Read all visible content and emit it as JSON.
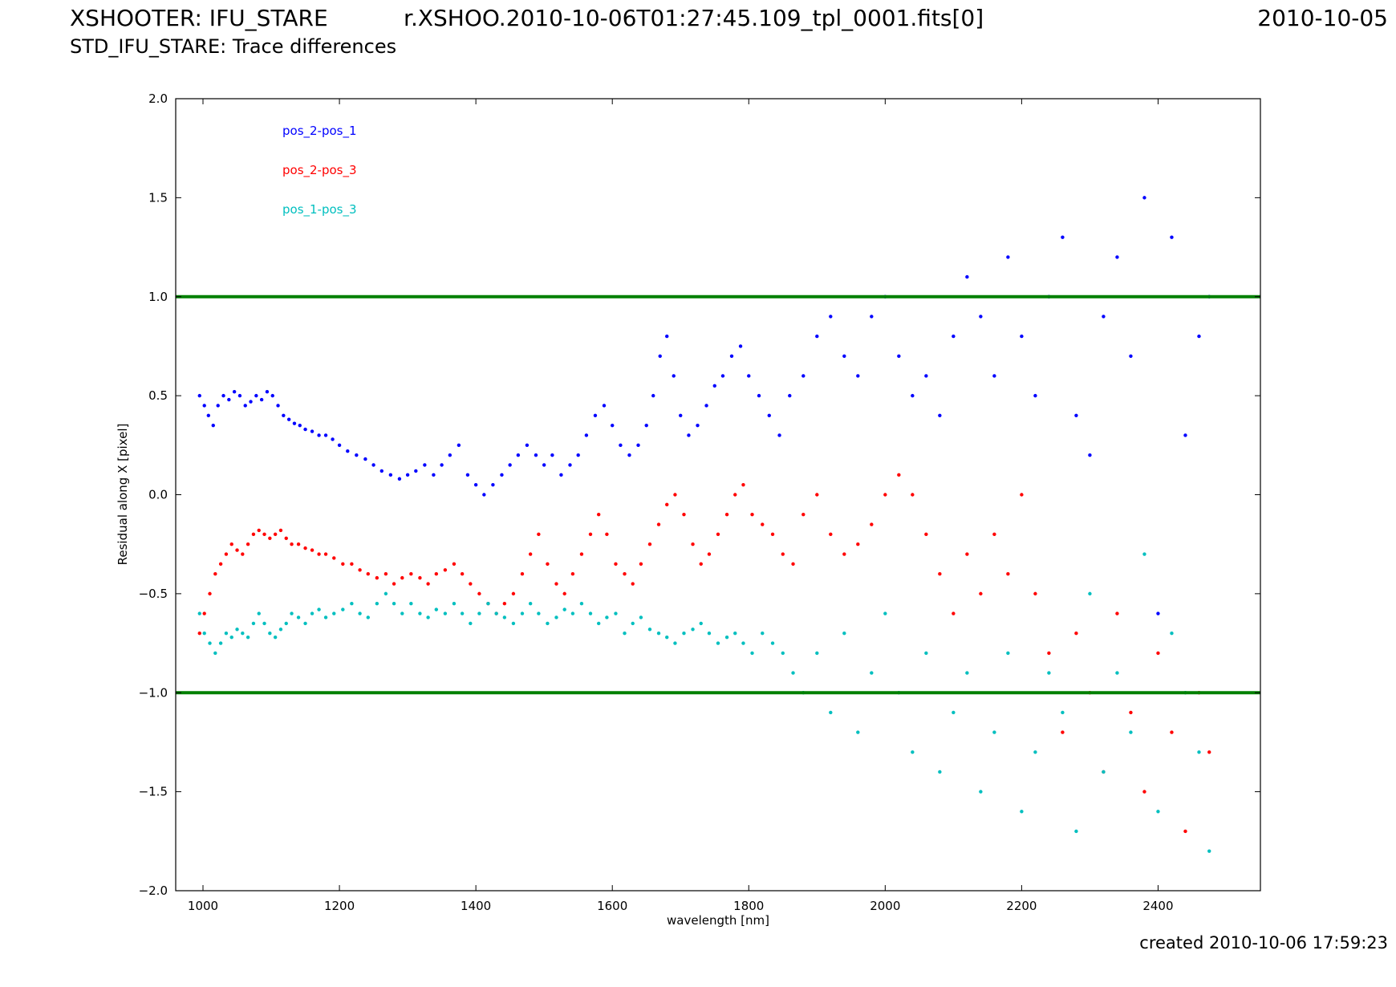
{
  "header": {
    "title_left": "XSHOOTER: IFU_STARE",
    "title_center": "r.XSHOO.2010-10-06T01:27:45.109_tpl_0001.fits[0]",
    "title_right": "2010-10-05",
    "subtitle": "STD_IFU_STARE: Trace differences"
  },
  "footer": {
    "created": "created 2010-10-06 17:59:23"
  },
  "chart_data": {
    "type": "scatter",
    "title": "",
    "xlabel": "wavelength [nm]",
    "ylabel": "Residual along X [pixel]",
    "xlim": [
      960,
      2550
    ],
    "ylim": [
      -2.0,
      2.0
    ],
    "xticks": [
      1000,
      1200,
      1400,
      1600,
      1800,
      2000,
      2200,
      2400
    ],
    "yticks": [
      -2.0,
      -1.5,
      -1.0,
      -0.5,
      0.0,
      0.5,
      1.0,
      1.5,
      2.0
    ],
    "ytick_labels": [
      "−2.0",
      "−1.5",
      "−1.0",
      "−0.5",
      "0.0",
      "0.5",
      "1.0",
      "1.5",
      "2.0"
    ],
    "grid": false,
    "legend_position": "top-left",
    "threshold_lines": [
      {
        "y": 1.0,
        "color": "#008000"
      },
      {
        "y": -1.0,
        "color": "#008000"
      }
    ],
    "series": [
      {
        "name": "pos_2-pos_1",
        "color": "#0000ff",
        "x": [
          995,
          1002,
          1008,
          1015,
          1022,
          1030,
          1038,
          1046,
          1054,
          1062,
          1070,
          1078,
          1086,
          1094,
          1102,
          1110,
          1118,
          1126,
          1134,
          1142,
          1150,
          1160,
          1170,
          1180,
          1190,
          1200,
          1212,
          1225,
          1238,
          1250,
          1262,
          1275,
          1288,
          1300,
          1312,
          1325,
          1338,
          1350,
          1362,
          1375,
          1388,
          1400,
          1412,
          1425,
          1438,
          1450,
          1462,
          1475,
          1488,
          1500,
          1512,
          1525,
          1538,
          1550,
          1562,
          1575,
          1588,
          1600,
          1612,
          1625,
          1638,
          1650,
          1660,
          1670,
          1680,
          1690,
          1700,
          1712,
          1725,
          1738,
          1750,
          1762,
          1775,
          1788,
          1800,
          1815,
          1830,
          1845,
          1860,
          1880,
          1900,
          1920,
          1940,
          1960,
          1980,
          2000,
          2020,
          2040,
          2060,
          2080,
          2100,
          2120,
          2140,
          2160,
          2180,
          2200,
          2220,
          2240,
          2260,
          2280,
          2300,
          2320,
          2340,
          2360,
          2380,
          2400,
          2420,
          2440,
          2460,
          2475
        ],
        "y": [
          0.5,
          0.45,
          0.4,
          0.35,
          0.45,
          0.5,
          0.48,
          0.52,
          0.5,
          0.45,
          0.47,
          0.5,
          0.48,
          0.52,
          0.5,
          0.45,
          0.4,
          0.38,
          0.36,
          0.35,
          0.33,
          0.32,
          0.3,
          0.3,
          0.28,
          0.25,
          0.22,
          0.2,
          0.18,
          0.15,
          0.12,
          0.1,
          0.08,
          0.1,
          0.12,
          0.15,
          0.1,
          0.15,
          0.2,
          0.25,
          0.1,
          0.05,
          0.0,
          0.05,
          0.1,
          0.15,
          0.2,
          0.25,
          0.2,
          0.15,
          0.2,
          0.1,
          0.15,
          0.2,
          0.3,
          0.4,
          0.45,
          0.35,
          0.25,
          0.2,
          0.25,
          0.35,
          0.5,
          0.7,
          0.8,
          0.6,
          0.4,
          0.3,
          0.35,
          0.45,
          0.55,
          0.6,
          0.7,
          0.75,
          0.6,
          0.5,
          0.4,
          0.3,
          0.5,
          0.6,
          0.8,
          0.9,
          0.7,
          0.6,
          0.9,
          1.0,
          0.7,
          0.5,
          0.6,
          0.4,
          0.8,
          1.1,
          0.9,
          0.6,
          1.2,
          0.8,
          0.5,
          1.0,
          1.3,
          0.4,
          0.2,
          0.9,
          1.2,
          0.7,
          1.5,
          -0.6,
          1.3,
          0.3,
          0.8,
          1.0
        ]
      },
      {
        "name": "pos_2-pos_3",
        "color": "#ff0000",
        "x": [
          995,
          1002,
          1010,
          1018,
          1026,
          1034,
          1042,
          1050,
          1058,
          1066,
          1074,
          1082,
          1090,
          1098,
          1106,
          1114,
          1122,
          1130,
          1140,
          1150,
          1160,
          1170,
          1180,
          1192,
          1205,
          1218,
          1230,
          1242,
          1255,
          1268,
          1280,
          1292,
          1305,
          1318,
          1330,
          1342,
          1355,
          1368,
          1380,
          1392,
          1405,
          1418,
          1430,
          1442,
          1455,
          1468,
          1480,
          1492,
          1505,
          1518,
          1530,
          1542,
          1555,
          1568,
          1580,
          1592,
          1605,
          1618,
          1630,
          1642,
          1655,
          1668,
          1680,
          1692,
          1705,
          1718,
          1730,
          1742,
          1755,
          1768,
          1780,
          1792,
          1805,
          1820,
          1835,
          1850,
          1865,
          1880,
          1900,
          1920,
          1940,
          1960,
          1980,
          2000,
          2020,
          2040,
          2060,
          2080,
          2100,
          2120,
          2140,
          2160,
          2180,
          2200,
          2220,
          2240,
          2260,
          2280,
          2300,
          2320,
          2340,
          2360,
          2380,
          2400,
          2420,
          2440,
          2460,
          2475
        ],
        "y": [
          -0.7,
          -0.6,
          -0.5,
          -0.4,
          -0.35,
          -0.3,
          -0.25,
          -0.28,
          -0.3,
          -0.25,
          -0.2,
          -0.18,
          -0.2,
          -0.22,
          -0.2,
          -0.18,
          -0.22,
          -0.25,
          -0.25,
          -0.27,
          -0.28,
          -0.3,
          -0.3,
          -0.32,
          -0.35,
          -0.35,
          -0.38,
          -0.4,
          -0.42,
          -0.4,
          -0.45,
          -0.42,
          -0.4,
          -0.42,
          -0.45,
          -0.4,
          -0.38,
          -0.35,
          -0.4,
          -0.45,
          -0.5,
          -0.55,
          -0.6,
          -0.55,
          -0.5,
          -0.4,
          -0.3,
          -0.2,
          -0.35,
          -0.45,
          -0.5,
          -0.4,
          -0.3,
          -0.2,
          -0.1,
          -0.2,
          -0.35,
          -0.4,
          -0.45,
          -0.35,
          -0.25,
          -0.15,
          -0.05,
          0.0,
          -0.1,
          -0.25,
          -0.35,
          -0.3,
          -0.2,
          -0.1,
          0.0,
          0.05,
          -0.1,
          -0.15,
          -0.2,
          -0.3,
          -0.35,
          -0.1,
          0.0,
          -0.2,
          -0.3,
          -0.25,
          -0.15,
          0.0,
          0.1,
          0.0,
          -0.2,
          -0.4,
          -0.6,
          -0.3,
          -0.5,
          -0.2,
          -0.4,
          0.0,
          -0.5,
          -0.8,
          -1.2,
          -0.7,
          -1.0,
          -1.4,
          -0.6,
          -1.1,
          -1.5,
          -0.8,
          -1.2,
          -1.7,
          -1.0,
          -1.3
        ]
      },
      {
        "name": "pos_1-pos_3",
        "color": "#00bfbf",
        "x": [
          995,
          1002,
          1010,
          1018,
          1026,
          1034,
          1042,
          1050,
          1058,
          1066,
          1074,
          1082,
          1090,
          1098,
          1106,
          1114,
          1122,
          1130,
          1140,
          1150,
          1160,
          1170,
          1180,
          1192,
          1205,
          1218,
          1230,
          1242,
          1255,
          1268,
          1280,
          1292,
          1305,
          1318,
          1330,
          1342,
          1355,
          1368,
          1380,
          1392,
          1405,
          1418,
          1430,
          1442,
          1455,
          1468,
          1480,
          1492,
          1505,
          1518,
          1530,
          1542,
          1555,
          1568,
          1580,
          1592,
          1605,
          1618,
          1630,
          1642,
          1655,
          1668,
          1680,
          1692,
          1705,
          1718,
          1730,
          1742,
          1755,
          1768,
          1780,
          1792,
          1805,
          1820,
          1835,
          1850,
          1865,
          1880,
          1900,
          1920,
          1940,
          1960,
          1980,
          2000,
          2020,
          2040,
          2060,
          2080,
          2100,
          2120,
          2140,
          2160,
          2180,
          2200,
          2220,
          2240,
          2260,
          2280,
          2300,
          2320,
          2340,
          2360,
          2380,
          2400,
          2420,
          2440,
          2460,
          2475
        ],
        "y": [
          -0.6,
          -0.7,
          -0.75,
          -0.8,
          -0.75,
          -0.7,
          -0.72,
          -0.68,
          -0.7,
          -0.72,
          -0.65,
          -0.6,
          -0.65,
          -0.7,
          -0.72,
          -0.68,
          -0.65,
          -0.6,
          -0.62,
          -0.65,
          -0.6,
          -0.58,
          -0.62,
          -0.6,
          -0.58,
          -0.55,
          -0.6,
          -0.62,
          -0.55,
          -0.5,
          -0.55,
          -0.6,
          -0.55,
          -0.6,
          -0.62,
          -0.58,
          -0.6,
          -0.55,
          -0.6,
          -0.65,
          -0.6,
          -0.55,
          -0.6,
          -0.62,
          -0.65,
          -0.6,
          -0.55,
          -0.6,
          -0.65,
          -0.62,
          -0.58,
          -0.6,
          -0.55,
          -0.6,
          -0.65,
          -0.62,
          -0.6,
          -0.7,
          -0.65,
          -0.62,
          -0.68,
          -0.7,
          -0.72,
          -0.75,
          -0.7,
          -0.68,
          -0.65,
          -0.7,
          -0.75,
          -0.72,
          -0.7,
          -0.75,
          -0.8,
          -0.7,
          -0.75,
          -0.8,
          -0.9,
          -1.0,
          -0.8,
          -1.1,
          -0.7,
          -1.2,
          -0.9,
          -0.6,
          -1.0,
          -1.3,
          -0.8,
          -1.4,
          -1.1,
          -0.9,
          -1.5,
          -1.2,
          -0.8,
          -1.6,
          -1.3,
          -0.9,
          -1.1,
          -1.7,
          -0.5,
          -1.4,
          -0.9,
          -1.2,
          -0.3,
          -1.6,
          -0.7,
          -1.0,
          -1.3,
          -1.8
        ]
      }
    ]
  }
}
